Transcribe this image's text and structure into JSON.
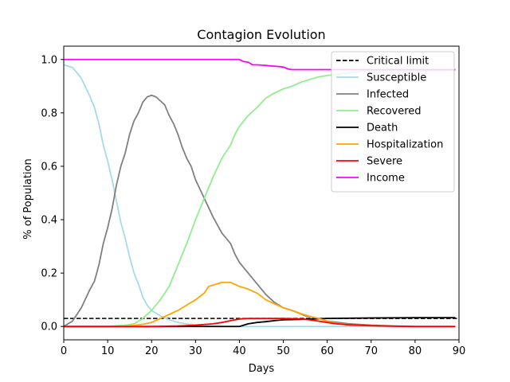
{
  "chart_data": {
    "type": "line",
    "title": "Contagion Evolution",
    "xlabel": "Days",
    "ylabel": "% of Population",
    "xlim": [
      0,
      90
    ],
    "ylim": [
      -0.05,
      1.05
    ],
    "xticks": [
      "0",
      "10",
      "20",
      "30",
      "40",
      "50",
      "60",
      "70",
      "80",
      "90"
    ],
    "yticks": [
      "0.0",
      "0.2",
      "0.4",
      "0.6",
      "0.8",
      "1.0"
    ],
    "grid": false,
    "legend_position": "top-right",
    "hlines": [
      {
        "name": "Critical limit",
        "y": 0.03,
        "color": "#000000",
        "style": "dashed"
      }
    ],
    "series": [
      {
        "name": "Susceptible",
        "color": "#a6dbe8",
        "x": [
          0,
          2,
          4,
          6,
          7,
          8,
          9,
          10,
          11,
          12,
          13,
          14,
          15,
          16,
          17,
          18,
          19,
          20,
          22,
          24,
          26,
          28,
          30,
          35,
          40,
          50,
          60,
          70,
          80,
          89
        ],
        "y": [
          0.98,
          0.97,
          0.93,
          0.86,
          0.82,
          0.76,
          0.68,
          0.62,
          0.55,
          0.47,
          0.39,
          0.33,
          0.26,
          0.2,
          0.16,
          0.11,
          0.08,
          0.06,
          0.04,
          0.025,
          0.015,
          0.01,
          0.005,
          0.0,
          0.0,
          0.0,
          0.0,
          0.0,
          0.0,
          0.0
        ]
      },
      {
        "name": "Infected",
        "color": "#808080",
        "x": [
          0,
          2,
          4,
          6,
          7,
          8,
          9,
          10,
          11,
          12,
          13,
          14,
          15,
          16,
          17,
          18,
          19,
          20,
          21,
          22,
          23,
          24,
          25,
          26,
          27,
          28,
          29,
          30,
          32,
          34,
          36,
          38,
          39,
          40,
          42,
          44,
          46,
          48,
          50,
          52,
          55,
          58,
          60,
          65,
          70,
          75,
          80,
          89
        ],
        "y": [
          0.0,
          0.02,
          0.07,
          0.14,
          0.17,
          0.23,
          0.31,
          0.37,
          0.44,
          0.53,
          0.6,
          0.65,
          0.72,
          0.77,
          0.8,
          0.84,
          0.86,
          0.866,
          0.86,
          0.845,
          0.83,
          0.79,
          0.76,
          0.72,
          0.67,
          0.63,
          0.6,
          0.55,
          0.48,
          0.41,
          0.35,
          0.31,
          0.27,
          0.24,
          0.2,
          0.16,
          0.12,
          0.09,
          0.07,
          0.06,
          0.04,
          0.03,
          0.02,
          0.01,
          0.005,
          0.002,
          0.0,
          0.0
        ]
      },
      {
        "name": "Recovered",
        "color": "#90ee90",
        "x": [
          0,
          10,
          14,
          16,
          18,
          20,
          22,
          24,
          26,
          28,
          30,
          32,
          34,
          36,
          38,
          39,
          40,
          42,
          44,
          46,
          48,
          50,
          52,
          54,
          56,
          58,
          60,
          65,
          70,
          75,
          80,
          89
        ],
        "y": [
          0.0,
          0.0,
          0.005,
          0.01,
          0.03,
          0.06,
          0.1,
          0.15,
          0.23,
          0.31,
          0.4,
          0.48,
          0.56,
          0.63,
          0.68,
          0.72,
          0.75,
          0.79,
          0.82,
          0.855,
          0.875,
          0.89,
          0.9,
          0.915,
          0.925,
          0.935,
          0.94,
          0.95,
          0.96,
          0.96,
          0.96,
          0.96
        ]
      },
      {
        "name": "Death",
        "color": "#000000",
        "x": [
          0,
          10,
          20,
          30,
          40,
          42,
          44,
          46,
          48,
          50,
          55,
          60,
          70,
          80,
          89
        ],
        "y": [
          0.0,
          0.0,
          0.0,
          0.0,
          0.0,
          0.01,
          0.015,
          0.018,
          0.022,
          0.025,
          0.027,
          0.03,
          0.032,
          0.033,
          0.033
        ]
      },
      {
        "name": "Hospitalization",
        "color": "#ffa500",
        "x": [
          0,
          12,
          15,
          18,
          20,
          22,
          24,
          26,
          28,
          30,
          32,
          33,
          34,
          36,
          38,
          40,
          42,
          44,
          46,
          48,
          50,
          52,
          54,
          56,
          58,
          60,
          62,
          65,
          70,
          75,
          80,
          89
        ],
        "y": [
          0.0,
          0.0,
          0.002,
          0.008,
          0.015,
          0.03,
          0.045,
          0.06,
          0.08,
          0.1,
          0.125,
          0.15,
          0.155,
          0.165,
          0.165,
          0.15,
          0.14,
          0.125,
          0.1,
          0.085,
          0.07,
          0.06,
          0.048,
          0.038,
          0.03,
          0.02,
          0.012,
          0.006,
          0.003,
          0.001,
          0.0,
          0.0
        ]
      },
      {
        "name": "Severe",
        "color": "#ff0000",
        "x": [
          0,
          20,
          26,
          30,
          34,
          36,
          38,
          40,
          42,
          46,
          50,
          54,
          56,
          58,
          60,
          62,
          65,
          70,
          75,
          80,
          89
        ],
        "y": [
          0.0,
          0.0,
          0.002,
          0.005,
          0.01,
          0.015,
          0.022,
          0.028,
          0.03,
          0.03,
          0.03,
          0.028,
          0.025,
          0.02,
          0.015,
          0.01,
          0.006,
          0.003,
          0.001,
          0.0,
          0.0
        ]
      },
      {
        "name": "Income",
        "color": "#ff00ff",
        "x": [
          0,
          10,
          20,
          30,
          40,
          41,
          42,
          43,
          44,
          46,
          47,
          48,
          50,
          51,
          52,
          60,
          70,
          80,
          89
        ],
        "y": [
          1.0,
          1.0,
          1.0,
          1.0,
          1.0,
          0.992,
          0.99,
          0.98,
          0.98,
          0.978,
          0.976,
          0.975,
          0.972,
          0.965,
          0.962,
          0.962,
          0.962,
          0.962,
          0.962
        ]
      }
    ]
  }
}
